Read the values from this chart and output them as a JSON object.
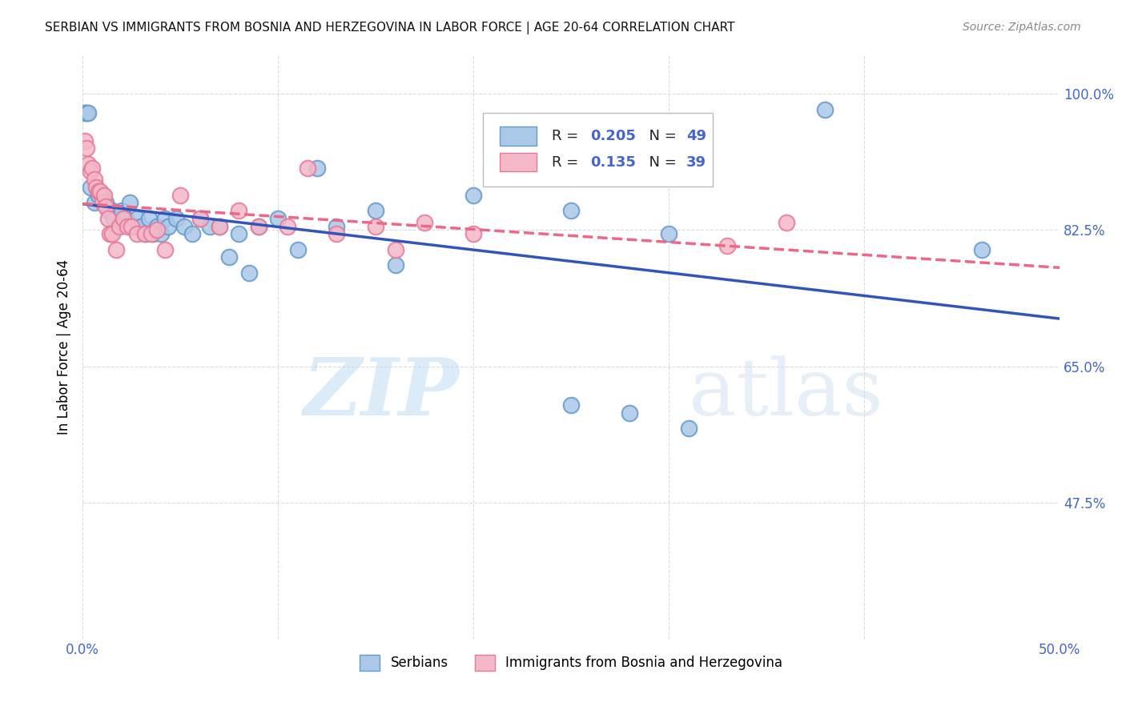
{
  "title": "SERBIAN VS IMMIGRANTS FROM BOSNIA AND HERZEGOVINA IN LABOR FORCE | AGE 20-64 CORRELATION CHART",
  "source": "Source: ZipAtlas.com",
  "ylabel": "In Labor Force | Age 20-64",
  "xlim": [
    0.0,
    0.5
  ],
  "ylim": [
    0.3,
    1.05
  ],
  "yticks": [
    0.475,
    0.65,
    0.825,
    1.0
  ],
  "ytick_labels": [
    "47.5%",
    "65.0%",
    "82.5%",
    "100.0%"
  ],
  "xticks": [
    0.0,
    0.1,
    0.2,
    0.3,
    0.4,
    0.5
  ],
  "xtick_labels": [
    "0.0%",
    "",
    "",
    "",
    "",
    "50.0%"
  ],
  "watermark_zip": "ZIP",
  "watermark_atlas": "atlas",
  "legend_blue_r": "0.205",
  "legend_blue_n": "49",
  "legend_pink_r": "0.135",
  "legend_pink_n": "39",
  "blue_scatter": [
    [
      0.001,
      0.975
    ],
    [
      0.002,
      0.975
    ],
    [
      0.003,
      0.975
    ],
    [
      0.004,
      0.88
    ],
    [
      0.006,
      0.86
    ],
    [
      0.008,
      0.87
    ],
    [
      0.01,
      0.87
    ],
    [
      0.012,
      0.86
    ],
    [
      0.013,
      0.85
    ],
    [
      0.015,
      0.85
    ],
    [
      0.016,
      0.84
    ],
    [
      0.018,
      0.83
    ],
    [
      0.02,
      0.85
    ],
    [
      0.022,
      0.84
    ],
    [
      0.024,
      0.86
    ],
    [
      0.026,
      0.83
    ],
    [
      0.028,
      0.84
    ],
    [
      0.03,
      0.83
    ],
    [
      0.032,
      0.82
    ],
    [
      0.034,
      0.84
    ],
    [
      0.036,
      0.82
    ],
    [
      0.038,
      0.83
    ],
    [
      0.04,
      0.82
    ],
    [
      0.042,
      0.84
    ],
    [
      0.044,
      0.83
    ],
    [
      0.048,
      0.84
    ],
    [
      0.052,
      0.83
    ],
    [
      0.056,
      0.82
    ],
    [
      0.06,
      0.84
    ],
    [
      0.065,
      0.83
    ],
    [
      0.07,
      0.83
    ],
    [
      0.075,
      0.79
    ],
    [
      0.08,
      0.82
    ],
    [
      0.085,
      0.77
    ],
    [
      0.09,
      0.83
    ],
    [
      0.1,
      0.84
    ],
    [
      0.11,
      0.8
    ],
    [
      0.12,
      0.905
    ],
    [
      0.13,
      0.83
    ],
    [
      0.15,
      0.85
    ],
    [
      0.16,
      0.78
    ],
    [
      0.2,
      0.87
    ],
    [
      0.25,
      0.85
    ],
    [
      0.28,
      0.59
    ],
    [
      0.3,
      0.82
    ],
    [
      0.31,
      0.57
    ],
    [
      0.38,
      0.98
    ],
    [
      0.46,
      0.8
    ],
    [
      0.25,
      0.6
    ]
  ],
  "pink_scatter": [
    [
      0.001,
      0.94
    ],
    [
      0.002,
      0.93
    ],
    [
      0.003,
      0.91
    ],
    [
      0.004,
      0.9
    ],
    [
      0.005,
      0.905
    ],
    [
      0.006,
      0.89
    ],
    [
      0.007,
      0.88
    ],
    [
      0.008,
      0.875
    ],
    [
      0.009,
      0.875
    ],
    [
      0.01,
      0.86
    ],
    [
      0.011,
      0.87
    ],
    [
      0.012,
      0.855
    ],
    [
      0.013,
      0.84
    ],
    [
      0.014,
      0.82
    ],
    [
      0.015,
      0.82
    ],
    [
      0.017,
      0.8
    ],
    [
      0.019,
      0.83
    ],
    [
      0.021,
      0.84
    ],
    [
      0.023,
      0.83
    ],
    [
      0.025,
      0.83
    ],
    [
      0.028,
      0.82
    ],
    [
      0.032,
      0.82
    ],
    [
      0.035,
      0.82
    ],
    [
      0.038,
      0.825
    ],
    [
      0.042,
      0.8
    ],
    [
      0.05,
      0.87
    ],
    [
      0.06,
      0.84
    ],
    [
      0.07,
      0.83
    ],
    [
      0.08,
      0.85
    ],
    [
      0.09,
      0.83
    ],
    [
      0.105,
      0.83
    ],
    [
      0.115,
      0.905
    ],
    [
      0.13,
      0.82
    ],
    [
      0.15,
      0.83
    ],
    [
      0.16,
      0.8
    ],
    [
      0.175,
      0.835
    ],
    [
      0.2,
      0.82
    ],
    [
      0.33,
      0.805
    ],
    [
      0.36,
      0.835
    ]
  ],
  "blue_color": "#aac8e8",
  "blue_edge": "#6699cc",
  "pink_color": "#f4b8c8",
  "pink_edge": "#e87898",
  "blue_line_color": "#3355bb",
  "pink_line_color": "#ee6688",
  "grid_color": "#cccccc",
  "axis_color": "#4466cc",
  "title_color": "#111111",
  "background_color": "#ffffff"
}
